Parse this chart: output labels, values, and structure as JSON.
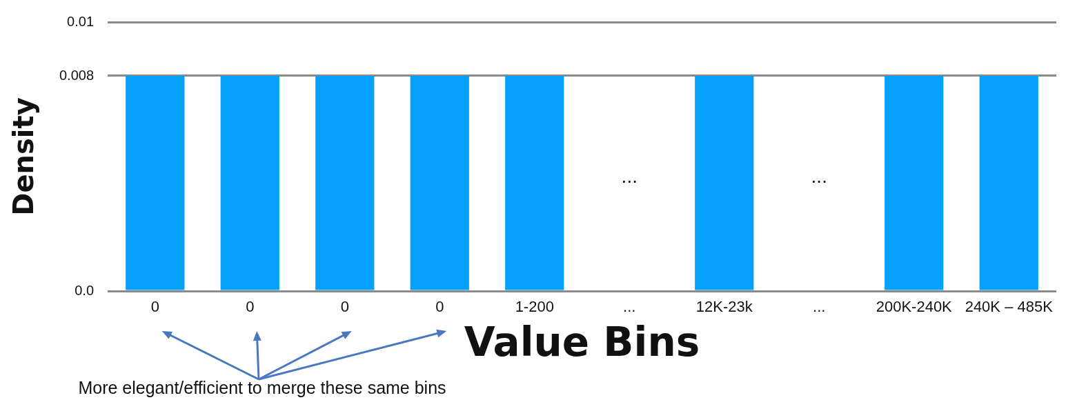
{
  "chart_data": {
    "type": "bar",
    "xlabel": "Value Bins",
    "ylabel": "Density",
    "categories": [
      "0",
      "0",
      "0",
      "0",
      "1-200",
      "...",
      "12K-23k",
      "...",
      "200K-240K",
      "240K – 485K"
    ],
    "values": [
      0.008,
      0.008,
      0.008,
      0.008,
      0.008,
      null,
      0.008,
      null,
      0.008,
      0.008
    ],
    "color": "#05a0fa",
    "ylim": [
      0,
      0.01
    ],
    "yticks": [
      {
        "value": 0,
        "label": "0.0"
      },
      0.008,
      0.01
    ],
    "grid": "y",
    "legend": false,
    "annotations": [
      "...",
      "...",
      "More elegant/efficient to merge these same bins"
    ]
  }
}
